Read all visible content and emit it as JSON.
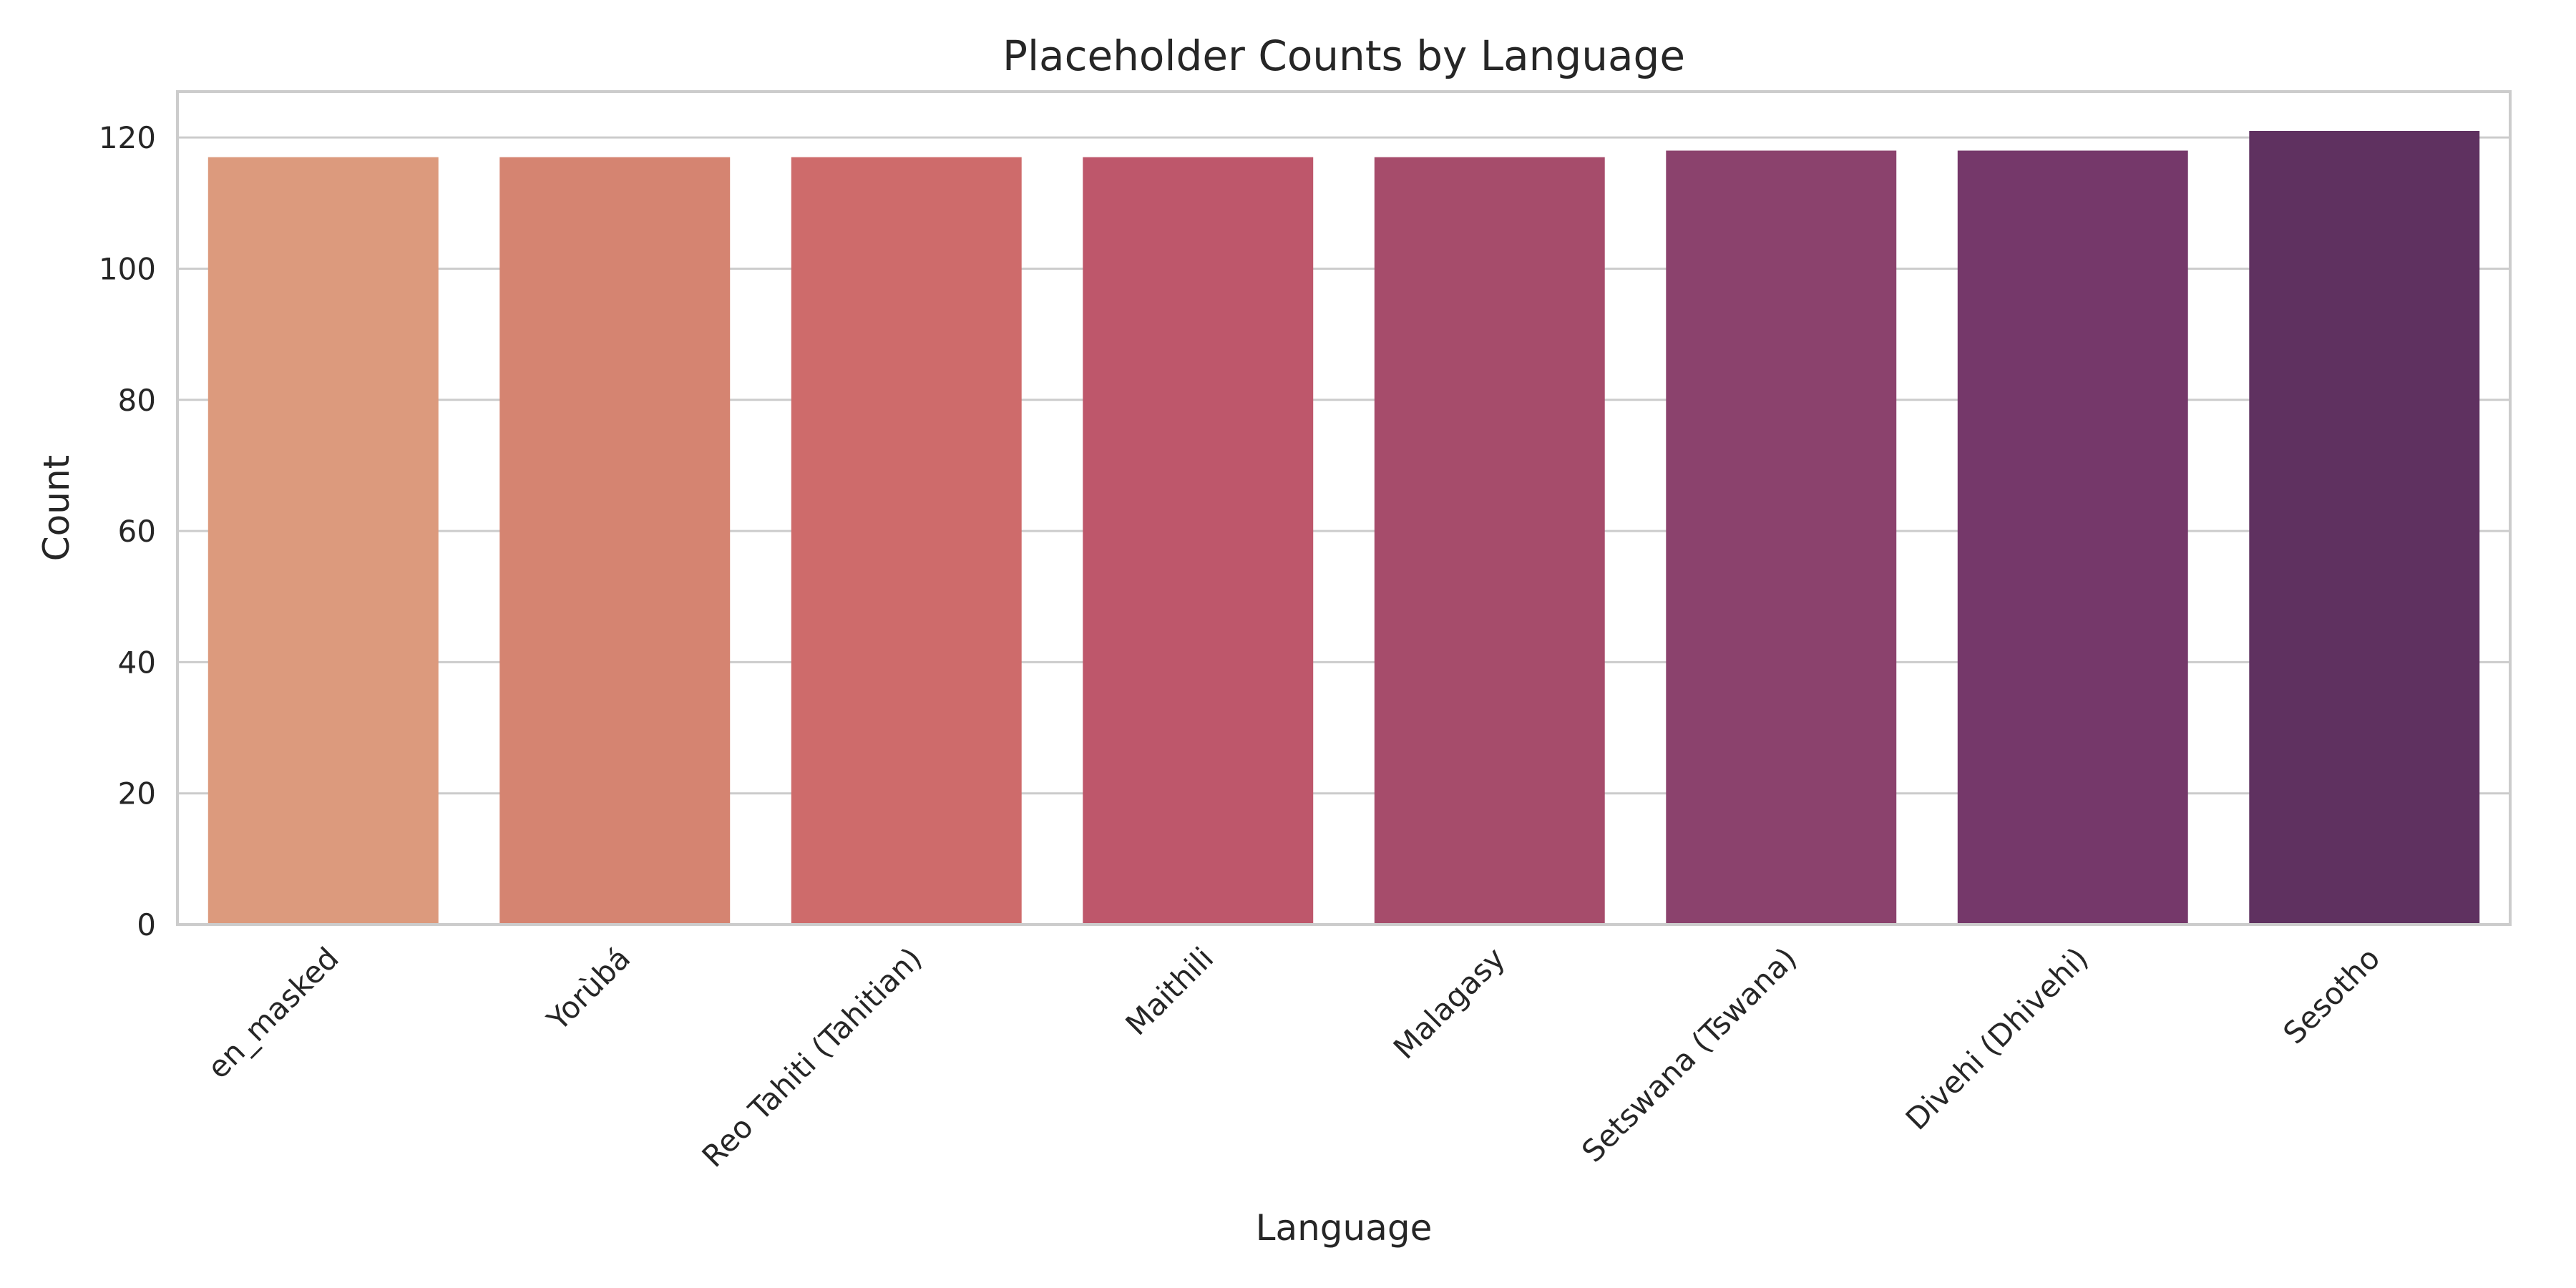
{
  "chart_data": {
    "type": "bar",
    "title": "Placeholder Counts by Language",
    "xlabel": "Language",
    "ylabel": "Count",
    "categories": [
      "en_masked",
      "Yorùbá",
      "Reo Tahiti (Tahitian)",
      "Maithili",
      "Malagasy",
      "Setswana (Tswana)",
      "Divehi (Dhivehi)",
      "Sesotho"
    ],
    "values": [
      117,
      117,
      117,
      117,
      117,
      118,
      118,
      121
    ],
    "colors": [
      "#dc9a7d",
      "#d58471",
      "#ce6b6b",
      "#be576b",
      "#a64c6b",
      "#8b426d",
      "#75386a",
      "#5f3160"
    ],
    "ylim": [
      0,
      127
    ],
    "yticks": [
      0,
      20,
      40,
      60,
      80,
      100,
      120
    ],
    "grid": true,
    "grid_axis": "y",
    "legend": false,
    "xtick_rotation": 45
  }
}
